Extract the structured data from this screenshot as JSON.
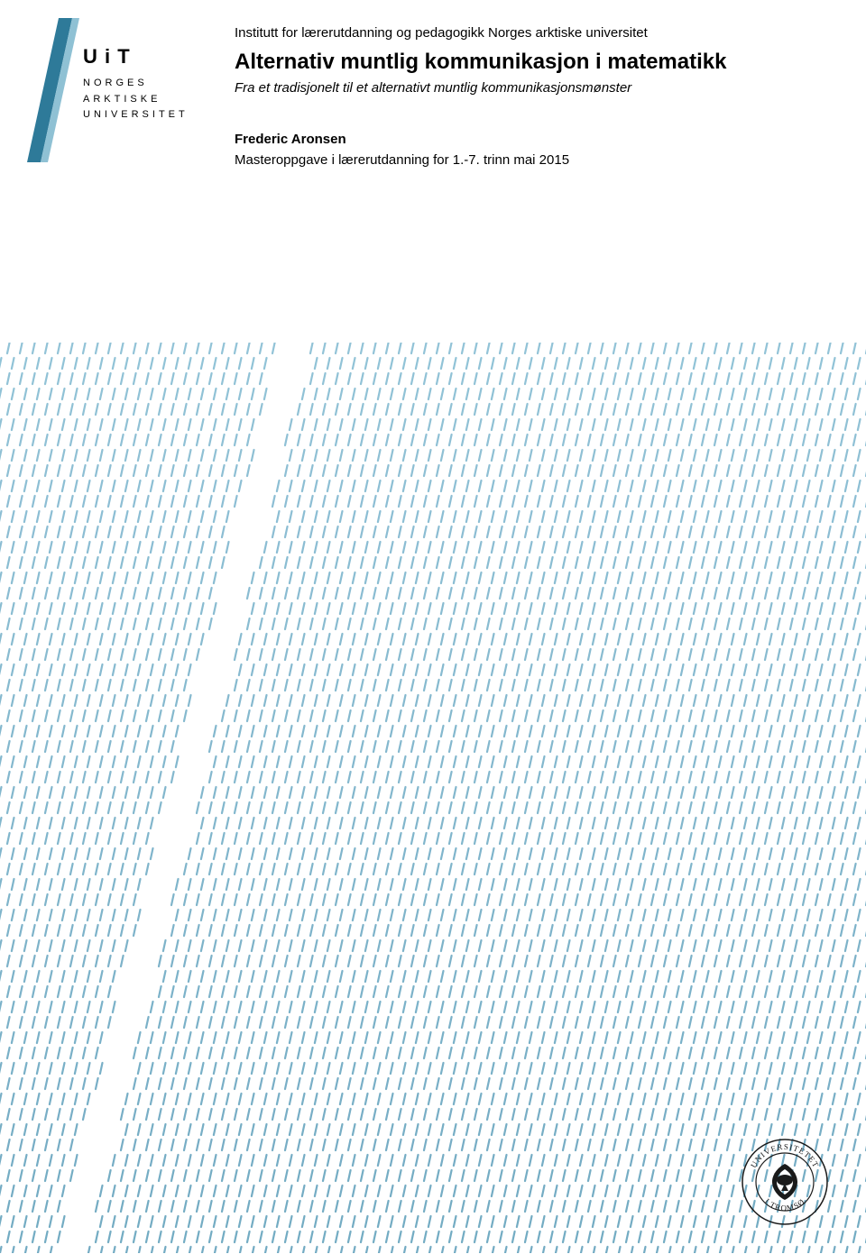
{
  "logo": {
    "uit": "U i T",
    "line1": "NORGES",
    "line2": "ARKTISKE",
    "line3": "UNIVERSITET",
    "slash_color_dark": "#2e7a99",
    "slash_color_light": "#8fc1d4"
  },
  "header": {
    "institute": "Institutt for lærerutdanning og pedagogikk Norges arktiske universitet",
    "title": "Alternativ muntlig kommunikasjon i matematikk",
    "subtitle": "Fra et tradisjonelt til et alternativt muntlig kommunikasjonsmønster",
    "author": "Frederic Aronsen",
    "thesis_info": "Masteroppgave i lærerutdanning for 1.-7. trinn mai 2015"
  },
  "pattern": {
    "rows": 60,
    "cols_per_row": 70,
    "stroke_w": 2.2,
    "stroke_h": 12,
    "row_spacing": 17,
    "col_spacing": 14,
    "skew_deg": 12,
    "color_top": "#7fb8d0",
    "color_bottom": "#5a9cb8",
    "gap_slope": 0.28,
    "gap_width": 30,
    "gap_left_start": 310,
    "gap_left_end": 60
  },
  "seal": {
    "outer_text_top": "UNIVERSITETET",
    "outer_text_bottom": "I TROMSØ",
    "color": "#1a1a1a"
  },
  "colors": {
    "page_bg": "#ffffff",
    "text": "#000000"
  }
}
